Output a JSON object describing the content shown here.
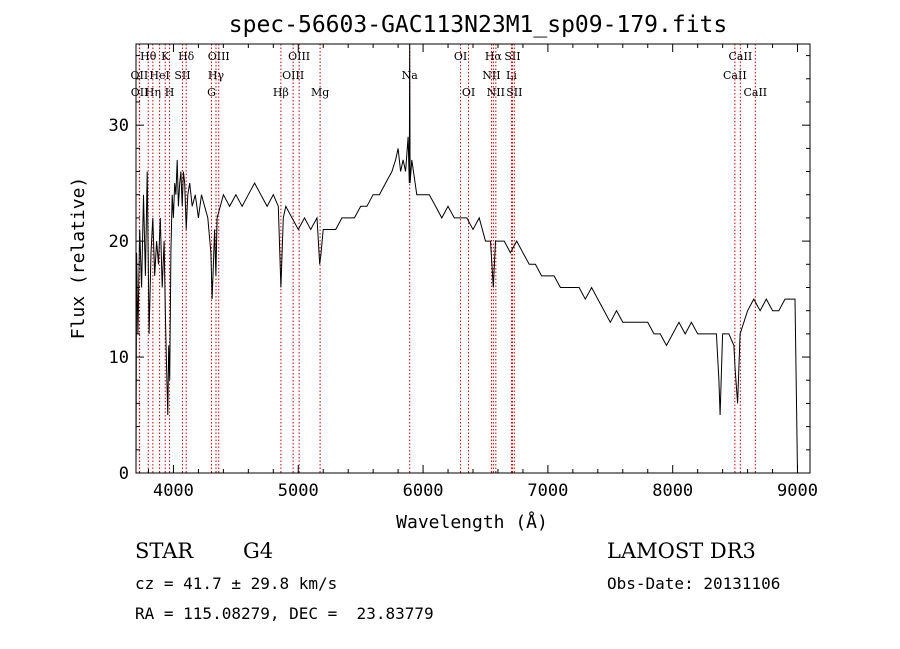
{
  "chart_data": {
    "type": "line",
    "title": "spec-56603-GAC113N23M1_sp09-179.fits",
    "xlabel": "Wavelength (Å)",
    "ylabel": "Flux (relative)",
    "xlim": [
      3700,
      9100
    ],
    "ylim": [
      0,
      37
    ],
    "xticks": [
      4000,
      5000,
      6000,
      7000,
      8000,
      9000
    ],
    "yticks": [
      0,
      10,
      20,
      30
    ],
    "grid": false,
    "line_color": "#000000",
    "marker_color": "#cc0000",
    "series": [
      {
        "points": [
          [
            3700,
            0
          ],
          [
            3705,
            19
          ],
          [
            3715,
            12
          ],
          [
            3730,
            21
          ],
          [
            3745,
            16
          ],
          [
            3760,
            24
          ],
          [
            3775,
            17
          ],
          [
            3790,
            26
          ],
          [
            3805,
            12
          ],
          [
            3820,
            19
          ],
          [
            3835,
            22
          ],
          [
            3850,
            17
          ],
          [
            3865,
            20
          ],
          [
            3880,
            18
          ],
          [
            3895,
            22
          ],
          [
            3910,
            16
          ],
          [
            3925,
            20
          ],
          [
            3935,
            14
          ],
          [
            3945,
            9
          ],
          [
            3955,
            5
          ],
          [
            3962,
            11
          ],
          [
            3970,
            8
          ],
          [
            3980,
            19
          ],
          [
            3990,
            24
          ],
          [
            4000,
            22
          ],
          [
            4010,
            25
          ],
          [
            4020,
            24
          ],
          [
            4030,
            27
          ],
          [
            4040,
            23
          ],
          [
            4050,
            25
          ],
          [
            4060,
            26
          ],
          [
            4070,
            23
          ],
          [
            4080,
            26
          ],
          [
            4090,
            25
          ],
          [
            4102,
            21
          ],
          [
            4115,
            24
          ],
          [
            4130,
            25
          ],
          [
            4150,
            23
          ],
          [
            4175,
            24
          ],
          [
            4200,
            22
          ],
          [
            4225,
            24
          ],
          [
            4250,
            23
          ],
          [
            4275,
            22
          ],
          [
            4300,
            19
          ],
          [
            4310,
            15
          ],
          [
            4320,
            18
          ],
          [
            4330,
            21
          ],
          [
            4340,
            17
          ],
          [
            4350,
            22
          ],
          [
            4375,
            23
          ],
          [
            4400,
            24
          ],
          [
            4450,
            23
          ],
          [
            4500,
            24
          ],
          [
            4550,
            23
          ],
          [
            4600,
            24
          ],
          [
            4650,
            25
          ],
          [
            4700,
            24
          ],
          [
            4750,
            23
          ],
          [
            4800,
            24
          ],
          [
            4840,
            23
          ],
          [
            4861,
            16
          ],
          [
            4880,
            22
          ],
          [
            4900,
            23
          ],
          [
            4950,
            22
          ],
          [
            5000,
            21
          ],
          [
            5050,
            22
          ],
          [
            5100,
            21
          ],
          [
            5150,
            22
          ],
          [
            5172,
            18
          ],
          [
            5183,
            19
          ],
          [
            5200,
            21
          ],
          [
            5250,
            21
          ],
          [
            5300,
            21
          ],
          [
            5350,
            22
          ],
          [
            5400,
            22
          ],
          [
            5450,
            22
          ],
          [
            5500,
            23
          ],
          [
            5550,
            23
          ],
          [
            5600,
            24
          ],
          [
            5650,
            24
          ],
          [
            5700,
            25
          ],
          [
            5750,
            26
          ],
          [
            5780,
            27
          ],
          [
            5800,
            28
          ],
          [
            5820,
            26
          ],
          [
            5840,
            27
          ],
          [
            5860,
            26
          ],
          [
            5880,
            29
          ],
          [
            5890,
            25
          ],
          [
            5893,
            37
          ],
          [
            5896,
            25
          ],
          [
            5910,
            27
          ],
          [
            5950,
            24
          ],
          [
            6000,
            24
          ],
          [
            6050,
            24
          ],
          [
            6100,
            23
          ],
          [
            6150,
            22
          ],
          [
            6200,
            23
          ],
          [
            6250,
            22
          ],
          [
            6300,
            22
          ],
          [
            6350,
            22
          ],
          [
            6400,
            21
          ],
          [
            6450,
            22
          ],
          [
            6500,
            20
          ],
          [
            6540,
            20
          ],
          [
            6563,
            16
          ],
          [
            6580,
            20
          ],
          [
            6600,
            20
          ],
          [
            6650,
            20
          ],
          [
            6700,
            19
          ],
          [
            6750,
            20
          ],
          [
            6800,
            19
          ],
          [
            6850,
            18
          ],
          [
            6900,
            18
          ],
          [
            6950,
            17
          ],
          [
            7000,
            17
          ],
          [
            7050,
            17
          ],
          [
            7100,
            16
          ],
          [
            7150,
            16
          ],
          [
            7200,
            16
          ],
          [
            7250,
            16
          ],
          [
            7300,
            15
          ],
          [
            7350,
            16
          ],
          [
            7400,
            15
          ],
          [
            7450,
            14
          ],
          [
            7500,
            13
          ],
          [
            7550,
            14
          ],
          [
            7600,
            13
          ],
          [
            7650,
            13
          ],
          [
            7700,
            13
          ],
          [
            7750,
            13
          ],
          [
            7800,
            13
          ],
          [
            7850,
            12
          ],
          [
            7900,
            12
          ],
          [
            7950,
            11
          ],
          [
            8000,
            12
          ],
          [
            8050,
            13
          ],
          [
            8100,
            12
          ],
          [
            8150,
            13
          ],
          [
            8200,
            12
          ],
          [
            8250,
            12
          ],
          [
            8300,
            12
          ],
          [
            8350,
            12
          ],
          [
            8370,
            8
          ],
          [
            8380,
            5
          ],
          [
            8400,
            12
          ],
          [
            8450,
            12
          ],
          [
            8490,
            11
          ],
          [
            8500,
            9
          ],
          [
            8520,
            6
          ],
          [
            8540,
            12
          ],
          [
            8600,
            14
          ],
          [
            8650,
            15
          ],
          [
            8700,
            14
          ],
          [
            8750,
            15
          ],
          [
            8800,
            14
          ],
          [
            8850,
            14
          ],
          [
            8900,
            15
          ],
          [
            8950,
            15
          ],
          [
            8980,
            15
          ],
          [
            9000,
            0
          ]
        ]
      }
    ],
    "line_markers": [
      {
        "label": "Hθ",
        "wave": 3798,
        "row": 0
      },
      {
        "label": "OII",
        "wave": 3727,
        "row": 1
      },
      {
        "label": "OII",
        "wave": 3729,
        "row": 2
      },
      {
        "label": "K",
        "wave": 3934,
        "row": 0
      },
      {
        "label": "HeI",
        "wave": 3889,
        "row": 1
      },
      {
        "label": "Hη",
        "wave": 3835,
        "row": 2
      },
      {
        "label": "Hδ",
        "wave": 4102,
        "row": 0
      },
      {
        "label": "SII",
        "wave": 4072,
        "row": 1
      },
      {
        "label": "H",
        "wave": 3969,
        "row": 2
      },
      {
        "label": "OIII",
        "wave": 4363,
        "row": 0
      },
      {
        "label": "Hγ",
        "wave": 4341,
        "row": 1
      },
      {
        "label": "G",
        "wave": 4305,
        "row": 2
      },
      {
        "label": "OIII",
        "wave": 5007,
        "row": 0
      },
      {
        "label": "OIII",
        "wave": 4959,
        "row": 1
      },
      {
        "label": "Hβ",
        "wave": 4861,
        "row": 2
      },
      {
        "label": "Mg",
        "wave": 5175,
        "row": 2
      },
      {
        "label": "Na",
        "wave": 5893,
        "row": 1
      },
      {
        "label": "OI",
        "wave": 6300,
        "row": 0
      },
      {
        "label": "OI",
        "wave": 6364,
        "row": 2
      },
      {
        "label": "Hα",
        "wave": 6563,
        "row": 0
      },
      {
        "label": "NII",
        "wave": 6548,
        "row": 1
      },
      {
        "label": "NII",
        "wave": 6583,
        "row": 2
      },
      {
        "label": "SII",
        "wave": 6716,
        "row": 0
      },
      {
        "label": "Li",
        "wave": 6708,
        "row": 1
      },
      {
        "label": "SII",
        "wave": 6731,
        "row": 2
      },
      {
        "label": "CaII",
        "wave": 8542,
        "row": 0
      },
      {
        "label": "CaII",
        "wave": 8498,
        "row": 1
      },
      {
        "label": "CaII",
        "wave": 8662,
        "row": 2
      }
    ]
  },
  "info": {
    "class": "STAR",
    "subclass": "G4",
    "redshift": "cz = 41.7 ± 29.8 km/s",
    "coords": "RA = 115.08279, DEC =  23.83779",
    "survey": "LAMOST DR3",
    "obs_date": "Obs-Date: 20131106"
  }
}
